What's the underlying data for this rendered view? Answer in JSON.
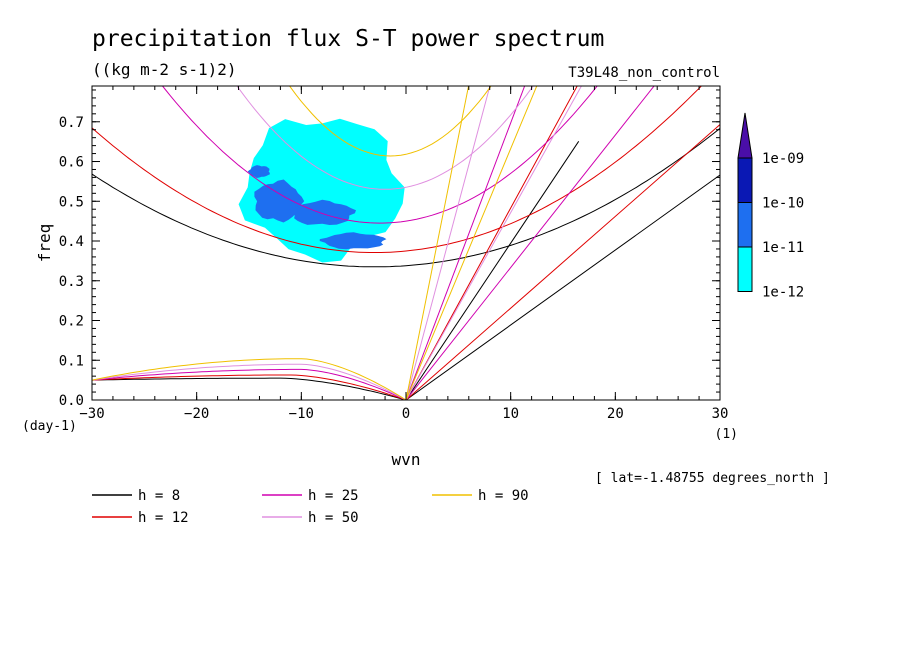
{
  "header": {
    "title": "precipitation flux S-T power spectrum",
    "units": "((kg m-2 s-1)2)",
    "run_name": "T39L48_non_control"
  },
  "footer": {
    "lat_note": "[ lat=-1.48755 degrees_north ]"
  },
  "chart_data": {
    "type": "heatmap",
    "xlabel": "wvn",
    "ylabel": "freq",
    "x_unit": "(1)",
    "y_unit": "(day-1)",
    "xlim": [
      -30,
      30
    ],
    "ylim": [
      0,
      0.79
    ],
    "x_ticks": [
      -30,
      -20,
      -10,
      0,
      10,
      20,
      30
    ],
    "x_tick_labels": [
      "−30",
      "−20",
      "−10",
      "0",
      "10",
      "20",
      "30"
    ],
    "y_ticks": [
      0.0,
      0.1,
      0.2,
      0.3,
      0.4,
      0.5,
      0.6,
      0.7
    ],
    "y_tick_labels": [
      "0.0",
      "0.1",
      "0.2",
      "0.3",
      "0.4",
      "0.5",
      "0.6",
      "0.7"
    ],
    "colorbar": {
      "levels": [
        "1e-12",
        "1e-11",
        "1e-10",
        "1e-09"
      ],
      "colors": [
        "#00ffff",
        "#1e6ff0",
        "#0a18b4",
        "#4a0ea8"
      ]
    },
    "legend": {
      "placement": "below",
      "items": [
        {
          "label": "h =  8",
          "color": "#000000"
        },
        {
          "label": "h = 12",
          "color": "#e00000"
        },
        {
          "label": "h = 25",
          "color": "#d000b0"
        },
        {
          "label": "h = 50",
          "color": "#e090e0"
        },
        {
          "label": "h = 90",
          "color": "#f0c000"
        }
      ]
    },
    "dispersion_curves": {
      "equivalent_depths_m": [
        8,
        12,
        25,
        50,
        90
      ],
      "colors": [
        "#000000",
        "#e00000",
        "#d000b0",
        "#e090e0",
        "#f0c000"
      ],
      "kelvin_slope_at_wvn30": [
        0.566,
        0.693,
        1.0,
        1.414,
        1.897
      ],
      "ig_min_freq": [
        0.335,
        0.371,
        0.445,
        0.53,
        0.614
      ],
      "ig_min_wvn": [
        -3,
        -3,
        -2.5,
        -2,
        -1.5
      ],
      "ig_curvature": [
        0.00032,
        0.00043,
        0.0008,
        0.0013,
        0.0019
      ],
      "mrg_peak_freq": [
        0.055,
        0.063,
        0.077,
        0.09,
        0.104
      ],
      "mrg_peak_wvn": [
        -12,
        -11,
        -10,
        -10,
        -10
      ]
    },
    "contours": [
      {
        "level": "1e-12",
        "regions": [
          {
            "wvn_range": [
              -15.5,
              -0.5
            ],
            "freq_range": [
              0.36,
              0.71
            ]
          }
        ]
      },
      {
        "level": "1e-11",
        "regions": [
          {
            "wvn_range": [
              -14.5,
              -10
            ],
            "freq_range": [
              0.45,
              0.55
            ]
          },
          {
            "wvn_range": [
              -11,
              -5
            ],
            "freq_range": [
              0.44,
              0.5
            ]
          },
          {
            "wvn_range": [
              -8,
              -2
            ],
            "freq_range": [
              0.38,
              0.42
            ]
          },
          {
            "wvn_range": [
              -15,
              -13
            ],
            "freq_range": [
              0.56,
              0.59
            ]
          }
        ]
      }
    ]
  }
}
